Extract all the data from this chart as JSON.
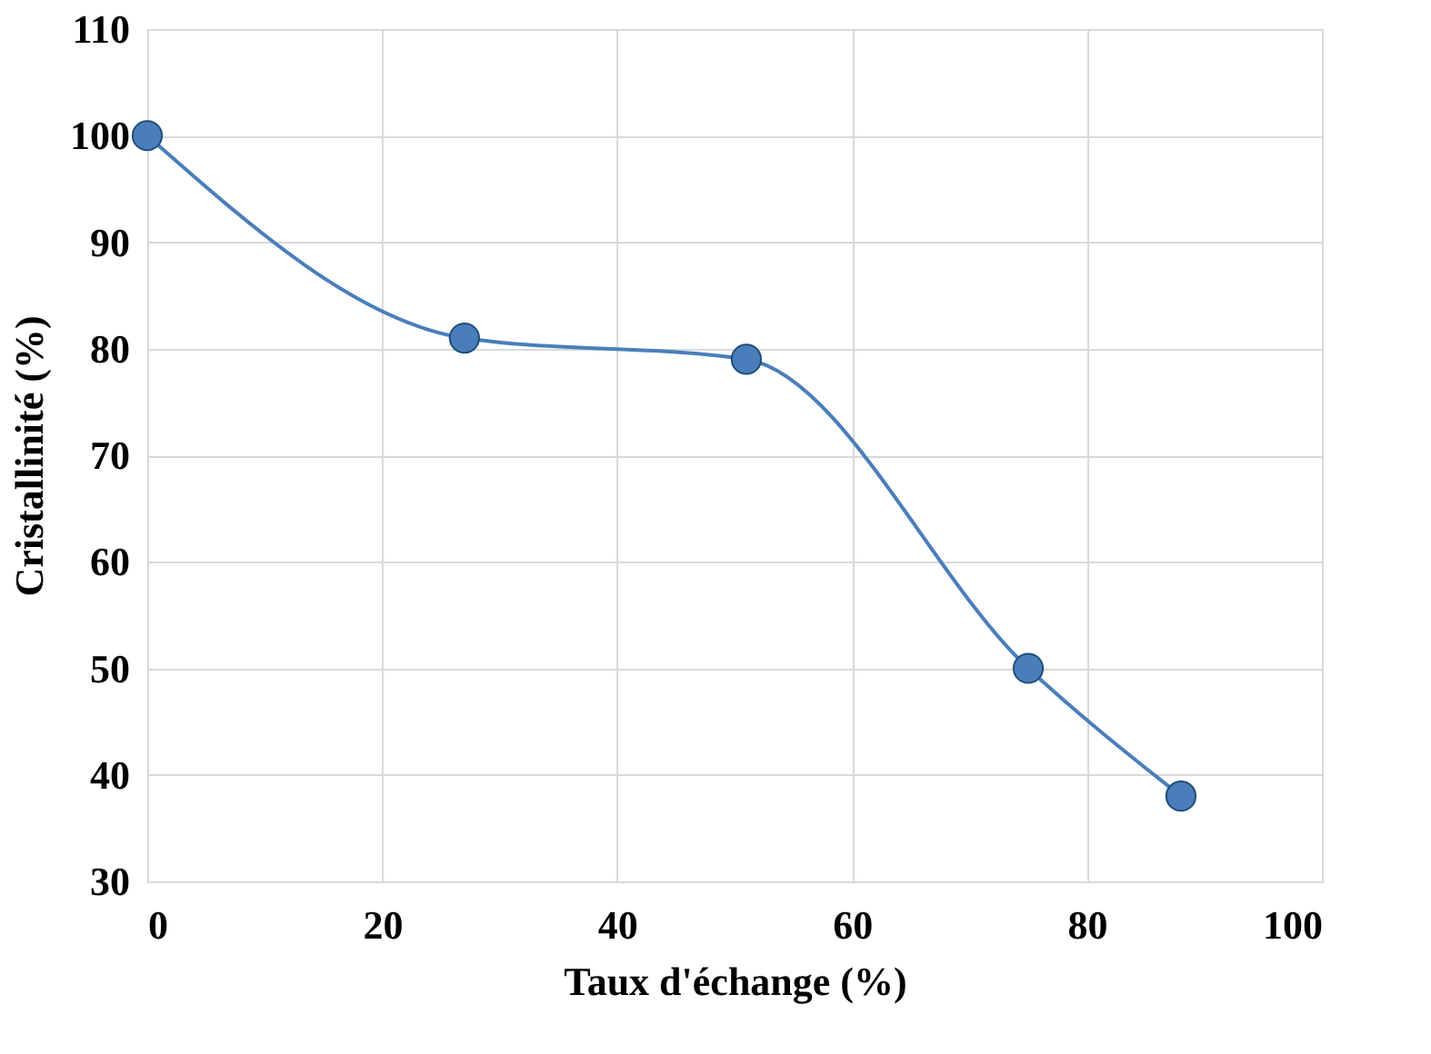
{
  "chart_data": {
    "type": "line",
    "xlabel": "Taux d'échange (%)",
    "ylabel": "Cristallinité (%)",
    "x": [
      0,
      27,
      51,
      75,
      88
    ],
    "series": [
      {
        "color": "#4a7ebb",
        "values": [
          100,
          81,
          79,
          50,
          38
        ]
      }
    ],
    "xlim": [
      0,
      100
    ],
    "xticks": [
      0,
      20,
      40,
      60,
      80,
      100
    ],
    "ylim": [
      30,
      110
    ],
    "yticks": [
      30,
      40,
      50,
      60,
      70,
      80,
      90,
      100,
      110
    ],
    "grid": true,
    "marker": "circle",
    "line_style": "solid"
  }
}
